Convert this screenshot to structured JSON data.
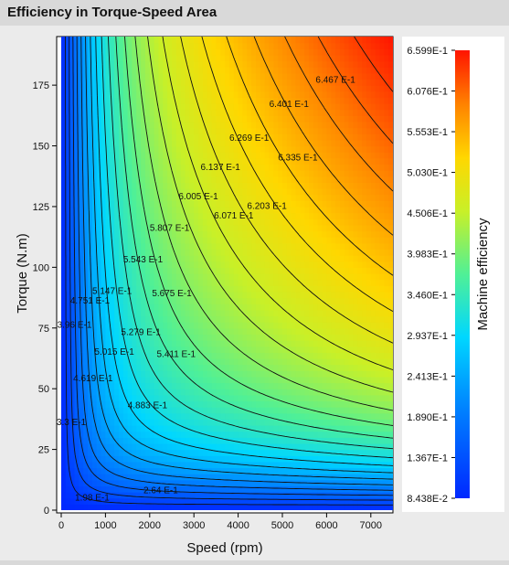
{
  "window": {
    "title": "Efficiency in Torque-Speed Area"
  },
  "chart_data": {
    "type": "heatmap",
    "title": "",
    "xlabel": "Speed (rpm)",
    "ylabel": "Torque (N.m)",
    "xlim": [
      0,
      7500
    ],
    "ylim": [
      0,
      195
    ],
    "x_ticks": [
      0,
      1000,
      2000,
      3000,
      4000,
      5000,
      6000,
      7000
    ],
    "y_ticks": [
      0,
      25,
      50,
      75,
      100,
      125,
      150,
      175
    ],
    "grid": false,
    "colorbar": {
      "label": "Machine efficiency",
      "min": 0.08438,
      "max": 0.6599,
      "tick_labels": [
        "6.599E-1",
        "6.076E-1",
        "5.553E-1",
        "5.030E-1",
        "4.506E-1",
        "3.983E-1",
        "3.460E-1",
        "2.937E-1",
        "2.413E-1",
        "1.890E-1",
        "1.367E-1",
        "8.438E-2"
      ],
      "tick_values": [
        0.6599,
        0.6076,
        0.5553,
        0.503,
        0.4506,
        0.3983,
        0.346,
        0.2937,
        0.2413,
        0.189,
        0.1367,
        0.08438
      ]
    },
    "contour_labels": [
      {
        "text": "6.467 E-1",
        "speed": 6200,
        "torque": 177
      },
      {
        "text": "6.401 E-1",
        "speed": 5150,
        "torque": 167
      },
      {
        "text": "6.269 E-1",
        "speed": 4250,
        "torque": 153
      },
      {
        "text": "6.335 E-1",
        "speed": 5350,
        "torque": 145
      },
      {
        "text": "6.137 E-1",
        "speed": 3600,
        "torque": 141
      },
      {
        "text": "6.005 E-1",
        "speed": 3100,
        "torque": 129
      },
      {
        "text": "6.203 E-1",
        "speed": 4650,
        "torque": 125
      },
      {
        "text": "6.071 E-1",
        "speed": 3900,
        "torque": 121
      },
      {
        "text": "5.807 E-1",
        "speed": 2450,
        "torque": 116
      },
      {
        "text": "5.543 E-1",
        "speed": 1850,
        "torque": 103
      },
      {
        "text": "5.147 E-1",
        "speed": 1150,
        "torque": 90
      },
      {
        "text": "5.675 E-1",
        "speed": 2500,
        "torque": 89
      },
      {
        "text": "4.751 E-1",
        "speed": 650,
        "torque": 86
      },
      {
        "text": "3.96 E-1",
        "speed": 300,
        "torque": 76
      },
      {
        "text": "5.279 E-1",
        "speed": 1800,
        "torque": 73
      },
      {
        "text": "5.015 E-1",
        "speed": 1200,
        "torque": 65
      },
      {
        "text": "5.411 E-1",
        "speed": 2600,
        "torque": 64
      },
      {
        "text": "4.619 E-1",
        "speed": 720,
        "torque": 54
      },
      {
        "text": "4.883 E-1",
        "speed": 1950,
        "torque": 43
      },
      {
        "text": "3.3 E-1",
        "speed": 230,
        "torque": 36
      },
      {
        "text": "2.64 E-1",
        "speed": 2250,
        "torque": 8
      },
      {
        "text": "1.98 E-1",
        "speed": 700,
        "torque": 5
      }
    ]
  }
}
